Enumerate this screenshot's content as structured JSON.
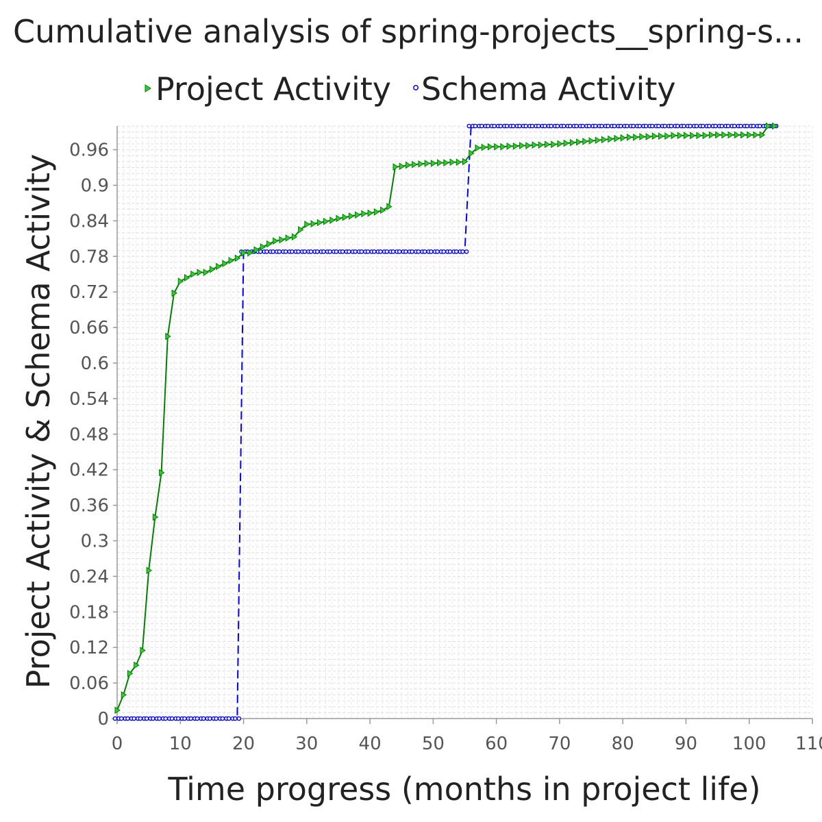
{
  "chart_data": {
    "type": "line",
    "title": "Cumulative analysis of spring-projects__spring-s...",
    "xlabel": "Time progress (months in project life)",
    "ylabel": "Project Activity & Schema Activity",
    "xlim": [
      0,
      110
    ],
    "ylim": [
      0,
      1.0
    ],
    "x_ticks": [
      0,
      10,
      20,
      30,
      40,
      50,
      60,
      70,
      80,
      90,
      100,
      110
    ],
    "x_tick_labels": [
      "0",
      "10",
      "20",
      "30",
      "40",
      "50",
      "60",
      "70",
      "80",
      "90",
      "100",
      "110"
    ],
    "y_ticks": [
      0,
      0.06,
      0.12,
      0.18,
      0.24,
      0.3,
      0.36,
      0.42,
      0.48,
      0.54,
      0.6,
      0.66,
      0.72,
      0.78,
      0.84,
      0.9,
      0.96
    ],
    "y_tick_labels": [
      "0",
      "0.06",
      "0.12",
      "0.18",
      "0.24",
      "0.3",
      "0.36",
      "0.42",
      "0.48",
      "0.54",
      "0.6",
      "0.66",
      "0.72",
      "0.78",
      "0.84",
      "0.9",
      "0.96"
    ],
    "legend": {
      "placement": "top-center"
    },
    "series": [
      {
        "name": "Project Activity",
        "color": "#008000",
        "marker": "triangle-right",
        "x": [
          0,
          1,
          2,
          3,
          4,
          5,
          6,
          7,
          8,
          9,
          10,
          11,
          12,
          13,
          14,
          15,
          16,
          17,
          18,
          19,
          20,
          21,
          22,
          23,
          24,
          25,
          26,
          27,
          28,
          29,
          30,
          31,
          32,
          33,
          34,
          35,
          36,
          37,
          38,
          39,
          40,
          41,
          42,
          43,
          44,
          45,
          46,
          47,
          48,
          49,
          50,
          51,
          52,
          53,
          54,
          55,
          56,
          57,
          58,
          59,
          60,
          61,
          62,
          63,
          64,
          65,
          66,
          67,
          68,
          69,
          70,
          71,
          72,
          73,
          74,
          75,
          76,
          77,
          78,
          79,
          80,
          81,
          82,
          83,
          84,
          85,
          86,
          87,
          88,
          89,
          90,
          91,
          92,
          93,
          94,
          95,
          96,
          97,
          98,
          99,
          100,
          101,
          102,
          103,
          104
        ],
        "y": [
          0.014,
          0.04,
          0.076,
          0.09,
          0.115,
          0.25,
          0.34,
          0.415,
          0.645,
          0.718,
          0.738,
          0.744,
          0.75,
          0.753,
          0.753,
          0.758,
          0.763,
          0.768,
          0.773,
          0.777,
          0.786,
          0.786,
          0.791,
          0.796,
          0.801,
          0.806,
          0.808,
          0.811,
          0.813,
          0.825,
          0.834,
          0.835,
          0.837,
          0.839,
          0.841,
          0.844,
          0.846,
          0.848,
          0.85,
          0.852,
          0.853,
          0.855,
          0.858,
          0.864,
          0.931,
          0.932,
          0.934,
          0.935,
          0.936,
          0.937,
          0.937,
          0.938,
          0.938,
          0.939,
          0.939,
          0.94,
          0.954,
          0.963,
          0.964,
          0.965,
          0.965,
          0.965,
          0.966,
          0.966,
          0.967,
          0.967,
          0.968,
          0.968,
          0.969,
          0.969,
          0.97,
          0.971,
          0.972,
          0.973,
          0.974,
          0.975,
          0.976,
          0.977,
          0.978,
          0.979,
          0.98,
          0.981,
          0.981,
          0.982,
          0.982,
          0.983,
          0.983,
          0.983,
          0.984,
          0.984,
          0.984,
          0.984,
          0.984,
          0.984,
          0.985,
          0.985,
          0.985,
          0.985,
          0.985,
          0.985,
          0.985,
          0.985,
          0.985,
          1.0,
          1.0
        ]
      },
      {
        "name": "Schema Activity",
        "color": "#0000ff",
        "marker": "circle",
        "x": [
          0,
          1,
          2,
          3,
          4,
          5,
          6,
          7,
          8,
          9,
          10,
          11,
          12,
          13,
          14,
          15,
          16,
          17,
          18,
          19,
          20,
          21,
          22,
          23,
          24,
          25,
          26,
          27,
          28,
          29,
          30,
          31,
          32,
          33,
          34,
          35,
          36,
          37,
          38,
          39,
          40,
          41,
          42,
          43,
          44,
          45,
          46,
          47,
          48,
          49,
          50,
          51,
          52,
          53,
          54,
          55,
          56,
          57,
          58,
          59,
          60,
          61,
          62,
          63,
          64,
          65,
          66,
          67,
          68,
          69,
          70,
          71,
          72,
          73,
          74,
          75,
          76,
          77,
          78,
          79,
          80,
          81,
          82,
          83,
          84,
          85,
          86,
          87,
          88,
          89,
          90,
          91,
          92,
          93,
          94,
          95,
          96,
          97,
          98,
          99,
          100,
          101,
          102,
          103,
          104
        ],
        "y": [
          0,
          0,
          0,
          0,
          0,
          0,
          0,
          0,
          0,
          0,
          0,
          0,
          0,
          0,
          0,
          0,
          0,
          0,
          0,
          0,
          0.788,
          0.788,
          0.788,
          0.788,
          0.788,
          0.788,
          0.788,
          0.788,
          0.788,
          0.788,
          0.788,
          0.788,
          0.788,
          0.788,
          0.788,
          0.788,
          0.788,
          0.788,
          0.788,
          0.788,
          0.788,
          0.788,
          0.788,
          0.788,
          0.788,
          0.788,
          0.788,
          0.788,
          0.788,
          0.788,
          0.788,
          0.788,
          0.788,
          0.788,
          0.788,
          0.788,
          1.0,
          1.0,
          1.0,
          1.0,
          1.0,
          1.0,
          1.0,
          1.0,
          1.0,
          1.0,
          1.0,
          1.0,
          1.0,
          1.0,
          1.0,
          1.0,
          1.0,
          1.0,
          1.0,
          1.0,
          1.0,
          1.0,
          1.0,
          1.0,
          1.0,
          1.0,
          1.0,
          1.0,
          1.0,
          1.0,
          1.0,
          1.0,
          1.0,
          1.0,
          1.0,
          1.0,
          1.0,
          1.0,
          1.0,
          1.0,
          1.0,
          1.0,
          1.0,
          1.0,
          1.0,
          1.0,
          1.0,
          1.0,
          1.0
        ]
      }
    ]
  }
}
